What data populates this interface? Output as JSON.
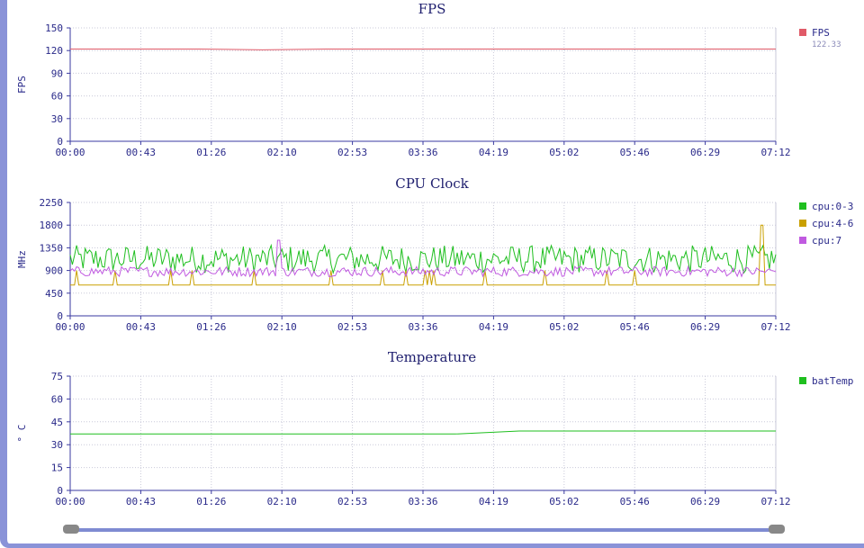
{
  "time_ticks": [
    "00:00",
    "00:43",
    "01:26",
    "02:10",
    "02:53",
    "03:36",
    "04:19",
    "05:02",
    "05:46",
    "06:29",
    "07:12"
  ],
  "charts": [
    {
      "id": "fps",
      "title": "FPS",
      "ylabel": "FPS",
      "yticks": [
        "0",
        "30",
        "60",
        "90",
        "120",
        "150"
      ],
      "ymax": 150,
      "legend": [
        {
          "name": "FPS",
          "color": "#e05a68",
          "value": "122.33"
        }
      ]
    },
    {
      "id": "cpu",
      "title": "CPU Clock",
      "ylabel": "MHz",
      "yticks": [
        "0",
        "450",
        "900",
        "1350",
        "1800",
        "2250"
      ],
      "ymax": 2250,
      "legend": [
        {
          "name": "cpu:0-3",
          "color": "#1fbf1f"
        },
        {
          "name": "cpu:4-6",
          "color": "#c9a000"
        },
        {
          "name": "cpu:7",
          "color": "#c05ae0"
        }
      ]
    },
    {
      "id": "temp",
      "title": "Temperature",
      "ylabel": "° C",
      "yticks": [
        "0",
        "15",
        "30",
        "45",
        "60",
        "75"
      ],
      "ymax": 75,
      "legend": [
        {
          "name": "batTemp",
          "color": "#1fbf1f"
        }
      ]
    }
  ],
  "chart_data": [
    {
      "type": "line",
      "title": "FPS",
      "ylabel": "FPS",
      "ylim": [
        0,
        150
      ],
      "x_range": [
        "00:00",
        "07:12"
      ],
      "series": [
        {
          "name": "FPS",
          "values": [
            122,
            122,
            122,
            121,
            122,
            122,
            122,
            122,
            122,
            122,
            122,
            122
          ]
        }
      ]
    },
    {
      "type": "line",
      "title": "CPU Clock",
      "ylabel": "MHz",
      "ylim": [
        0,
        2250
      ],
      "x_range": [
        "00:00",
        "07:12"
      ],
      "series": [
        {
          "name": "cpu:0-3",
          "values": [
            1100,
            850,
            1350,
            900,
            1300,
            850,
            1250,
            900,
            1350,
            950,
            1200,
            1000
          ]
        },
        {
          "name": "cpu:4-6",
          "values": [
            610,
            610,
            610,
            610,
            610,
            610,
            610,
            610,
            610,
            610,
            1800,
            610
          ]
        },
        {
          "name": "cpu:7",
          "values": [
            850,
            950,
            820,
            900,
            1500,
            820,
            900,
            800,
            850,
            900,
            850,
            800
          ]
        }
      ]
    },
    {
      "type": "line",
      "title": "Temperature",
      "ylabel": "° C",
      "ylim": [
        0,
        75
      ],
      "x_range": [
        "00:00",
        "07:12"
      ],
      "series": [
        {
          "name": "batTemp",
          "values": [
            37,
            37,
            37,
            37,
            37,
            37,
            37,
            39,
            39,
            39,
            39,
            39
          ]
        }
      ]
    }
  ]
}
